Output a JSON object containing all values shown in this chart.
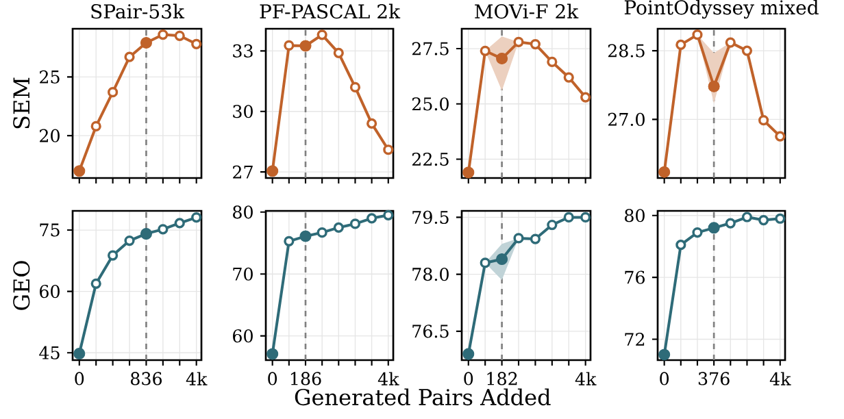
{
  "chart_data": [
    {
      "type": "line",
      "title": "SPair-53k",
      "ylabel": "SEM",
      "categories": [
        null,
        null,
        null,
        null,
        null,
        null,
        null,
        null
      ],
      "ylim": [
        16.4,
        29.1
      ],
      "yticks": [
        20,
        25
      ],
      "tick_labels": "y",
      "grid": true,
      "marker": "circle",
      "series": [
        {
          "color": "#c0622a",
          "values": [
            17.0,
            20.8,
            23.7,
            26.7,
            27.9,
            28.6,
            28.5,
            27.8
          ]
        }
      ]
    },
    {
      "type": "line",
      "title": "PF-PASCAL 2k",
      "categories": [
        null,
        null,
        null,
        null,
        null,
        null,
        null,
        null
      ],
      "ylim": [
        26.7,
        34.1
      ],
      "yticks": [
        27,
        30,
        33
      ],
      "tick_labels": "y",
      "grid": true,
      "marker": "circle",
      "series": [
        {
          "color": "#c0622a",
          "values": [
            27.05,
            33.27,
            33.25,
            33.8,
            32.9,
            31.2,
            29.4,
            28.1
          ]
        }
      ]
    },
    {
      "type": "line",
      "title": "MOVi-F 2k",
      "categories": [
        null,
        null,
        null,
        null,
        null,
        null,
        null,
        null
      ],
      "ylim": [
        21.65,
        28.4
      ],
      "yticks": [
        22.5,
        {
          "value": 25,
          "label": "25.0"
        },
        27.5
      ],
      "tick_labels": "y",
      "grid": true,
      "marker": "circle",
      "series": [
        {
          "color": "#c0622a",
          "values": [
            21.9,
            27.4,
            27.05,
            27.8,
            27.7,
            26.9,
            26.2,
            25.3
          ],
          "lower": [
            21.9,
            27.4,
            25.6,
            27.8,
            27.7,
            26.9,
            26.2,
            25.3
          ],
          "upper": [
            21.9,
            27.4,
            28.05,
            27.8,
            27.7,
            26.9,
            26.2,
            25.3
          ]
        }
      ]
    },
    {
      "type": "line",
      "title": "PointOdyssey mixed",
      "categories": [
        null,
        null,
        null,
        null,
        null,
        null,
        null,
        null
      ],
      "ylim": [
        25.72,
        28.98
      ],
      "yticks": [
        {
          "value": 27,
          "label": "27.0"
        },
        28.5
      ],
      "tick_labels": "y",
      "grid": true,
      "marker": "circle",
      "series": [
        {
          "color": "#c0622a",
          "values": [
            25.85,
            28.63,
            28.85,
            27.72,
            28.68,
            28.5,
            26.98,
            26.63
          ],
          "lower": [
            25.85,
            28.63,
            28.85,
            27.35,
            28.68,
            28.5,
            26.98,
            26.63
          ],
          "upper": [
            25.85,
            28.63,
            28.85,
            28.45,
            28.68,
            28.5,
            26.98,
            26.63
          ]
        }
      ]
    },
    {
      "type": "line",
      "ylabel": "GEO",
      "categories": [
        "0",
        null,
        null,
        null,
        "836",
        null,
        null,
        "4k"
      ],
      "ylim": [
        43.2,
        79.7
      ],
      "yticks": [
        45,
        60,
        75
      ],
      "grid": true,
      "marker": "circle",
      "ref_lines": [
        {
          "axis": "x",
          "value": "836",
          "color": "#808080",
          "line_style": "dashed"
        }
      ],
      "series": [
        {
          "color": "#2e6b78",
          "values": [
            44.8,
            61.9,
            68.8,
            72.4,
            74.1,
            75.2,
            76.7,
            78.1
          ]
        }
      ]
    },
    {
      "type": "line",
      "xlabel": "Generated Pairs Added",
      "categories": [
        "0",
        null,
        "186",
        null,
        null,
        null,
        null,
        "4k"
      ],
      "ylim": [
        56.1,
        80.2
      ],
      "yticks": [
        60,
        70,
        80
      ],
      "grid": true,
      "marker": "circle",
      "ref_lines": [
        {
          "axis": "x",
          "value": "186",
          "color": "#808080",
          "line_style": "dashed"
        }
      ],
      "series": [
        {
          "color": "#2e6b78",
          "values": [
            57.1,
            75.3,
            76.1,
            76.7,
            77.5,
            78.1,
            79.0,
            79.5
          ]
        }
      ]
    },
    {
      "type": "line",
      "categories": [
        "0",
        null,
        "182",
        null,
        null,
        null,
        null,
        "4k"
      ],
      "ylim": [
        75.74,
        79.67
      ],
      "yticks": [
        76.5,
        {
          "value": 78,
          "label": "78.0"
        },
        79.5
      ],
      "grid": true,
      "marker": "circle",
      "ref_lines": [
        {
          "axis": "x",
          "value": "182",
          "color": "#808080",
          "line_style": "dashed"
        }
      ],
      "series": [
        {
          "color": "#2e6b78",
          "values": [
            75.9,
            78.3,
            78.4,
            78.95,
            78.93,
            79.3,
            79.5,
            79.5
          ],
          "lower": [
            75.9,
            78.3,
            77.85,
            78.95,
            78.93,
            79.3,
            79.5,
            79.5
          ],
          "upper": [
            75.9,
            78.3,
            78.8,
            78.95,
            78.93,
            79.3,
            79.5,
            79.5
          ]
        }
      ]
    },
    {
      "type": "line",
      "categories": [
        "0",
        null,
        null,
        "376",
        null,
        null,
        null,
        "4k"
      ],
      "ylim": [
        70.65,
        80.3
      ],
      "yticks": [
        72,
        76,
        80
      ],
      "grid": true,
      "marker": "circle",
      "ref_lines": [
        {
          "axis": "x",
          "value": "376",
          "color": "#808080",
          "line_style": "dashed"
        }
      ],
      "series": [
        {
          "color": "#2e6b78",
          "values": [
            71.0,
            78.1,
            78.9,
            79.2,
            79.5,
            79.9,
            79.7,
            79.8
          ]
        }
      ]
    }
  ]
}
